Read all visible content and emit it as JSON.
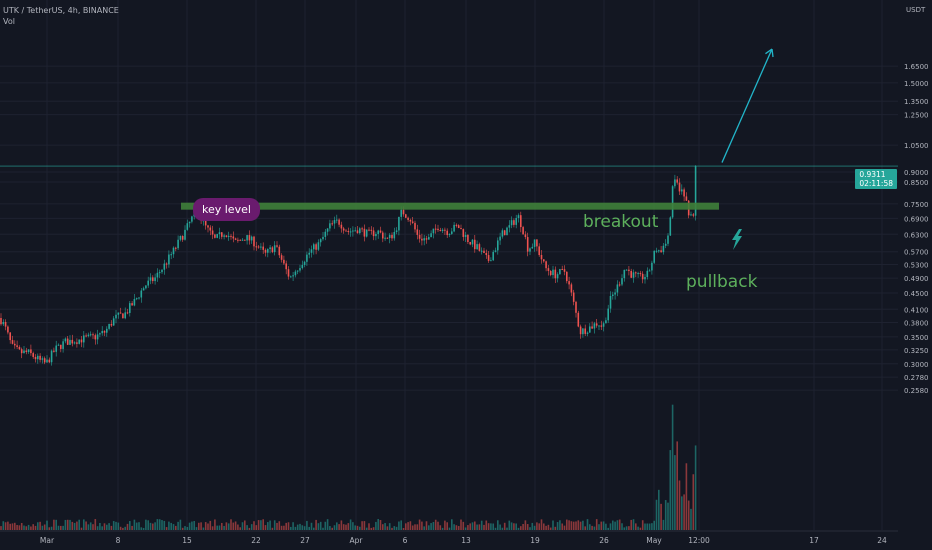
{
  "header": {
    "symbol_line": "UTK / TetherUS, 4h, BINANCE",
    "indicator": "Vol"
  },
  "price_axis": {
    "currency": "USDT",
    "current_price": "0.9311",
    "countdown": "02:11:58"
  },
  "annotations": {
    "key_level": "key level",
    "breakout": "breakout",
    "pullback": "pullback"
  },
  "chart_data": {
    "type": "candlestick",
    "symbol": "UTK / TetherUS",
    "interval": "4h",
    "exchange": "BINANCE",
    "y_scale": "log",
    "y_ticks": [
      1.65,
      1.5,
      1.35,
      1.25,
      1.05,
      0.9,
      0.85,
      0.75,
      0.69,
      0.63,
      0.57,
      0.53,
      0.49,
      0.45,
      0.41,
      0.38,
      0.35,
      0.325,
      0.3,
      0.278,
      0.258
    ],
    "x_ticks": [
      "Mar",
      "8",
      "15",
      "22",
      "27",
      "Apr",
      "6",
      "13",
      "19",
      "26",
      "May",
      "12:00",
      "17",
      "24"
    ],
    "ylim": [
      0.25,
      1.85
    ],
    "key_level": 0.74,
    "current_price": 0.9311,
    "price_path": [
      [
        0,
        0.39
      ],
      [
        5,
        0.37
      ],
      [
        12,
        0.33
      ],
      [
        20,
        0.32
      ],
      [
        28,
        0.32
      ],
      [
        40,
        0.305
      ],
      [
        46,
        0.3
      ],
      [
        55,
        0.325
      ],
      [
        65,
        0.34
      ],
      [
        80,
        0.345
      ],
      [
        95,
        0.35
      ],
      [
        105,
        0.36
      ],
      [
        115,
        0.39
      ],
      [
        125,
        0.4
      ],
      [
        135,
        0.43
      ],
      [
        145,
        0.47
      ],
      [
        155,
        0.49
      ],
      [
        165,
        0.53
      ],
      [
        175,
        0.58
      ],
      [
        185,
        0.64
      ],
      [
        192,
        0.69
      ],
      [
        197,
        0.72
      ],
      [
        205,
        0.66
      ],
      [
        215,
        0.61
      ],
      [
        225,
        0.64
      ],
      [
        235,
        0.6
      ],
      [
        245,
        0.62
      ],
      [
        255,
        0.6
      ],
      [
        265,
        0.56
      ],
      [
        275,
        0.59
      ],
      [
        285,
        0.52
      ],
      [
        290,
        0.49
      ],
      [
        300,
        0.53
      ],
      [
        310,
        0.57
      ],
      [
        320,
        0.6
      ],
      [
        330,
        0.66
      ],
      [
        338,
        0.68
      ],
      [
        348,
        0.64
      ],
      [
        358,
        0.65
      ],
      [
        368,
        0.63
      ],
      [
        378,
        0.64
      ],
      [
        388,
        0.61
      ],
      [
        395,
        0.64
      ],
      [
        402,
        0.72
      ],
      [
        410,
        0.69
      ],
      [
        418,
        0.62
      ],
      [
        428,
        0.61
      ],
      [
        438,
        0.66
      ],
      [
        448,
        0.64
      ],
      [
        458,
        0.66
      ],
      [
        468,
        0.61
      ],
      [
        478,
        0.58
      ],
      [
        488,
        0.54
      ],
      [
        495,
        0.58
      ],
      [
        502,
        0.63
      ],
      [
        510,
        0.66
      ],
      [
        518,
        0.7
      ],
      [
        522,
        0.66
      ],
      [
        528,
        0.58
      ],
      [
        535,
        0.6
      ],
      [
        545,
        0.52
      ],
      [
        555,
        0.5
      ],
      [
        565,
        0.51
      ],
      [
        575,
        0.41
      ],
      [
        580,
        0.36
      ],
      [
        590,
        0.37
      ],
      [
        598,
        0.38
      ],
      [
        603,
        0.37
      ],
      [
        610,
        0.43
      ],
      [
        618,
        0.47
      ],
      [
        625,
        0.52
      ],
      [
        632,
        0.5
      ],
      [
        640,
        0.49
      ],
      [
        648,
        0.5
      ],
      [
        656,
        0.58
      ],
      [
        662,
        0.58
      ],
      [
        666,
        0.6
      ],
      [
        670,
        0.68
      ],
      [
        672,
        0.8
      ],
      [
        675,
        0.85
      ],
      [
        680,
        0.82
      ],
      [
        686,
        0.76
      ],
      [
        690,
        0.7
      ],
      [
        693,
        0.68
      ],
      [
        697,
        0.93
      ]
    ],
    "projection": {
      "from": [
        722,
        0.95
      ],
      "to": [
        772,
        1.82
      ]
    }
  },
  "colors": {
    "background": "#131722",
    "up": "#26a69a",
    "down": "#ef5350",
    "key_level_line": "#3f7f3a",
    "annotation_text": "#5db05c",
    "bubble": "#6a1b6e",
    "projection_arrow": "#22b5c9"
  }
}
